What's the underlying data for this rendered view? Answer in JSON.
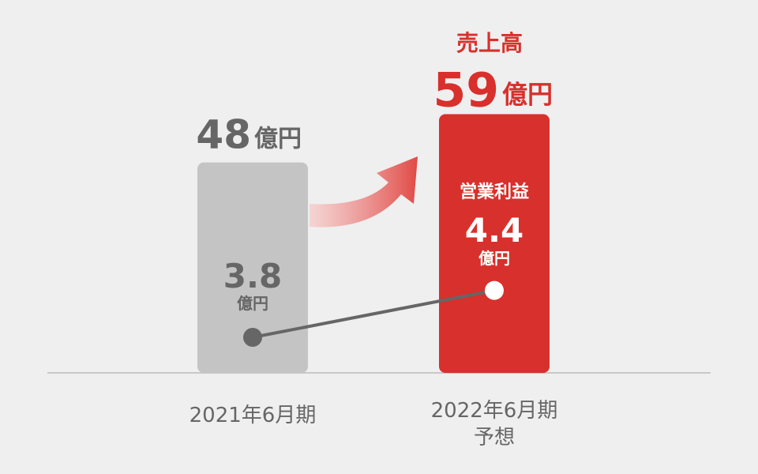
{
  "chart_data": {
    "type": "bar",
    "categories": [
      "2021年6月期",
      "2022年6月期\n予想"
    ],
    "series": [
      {
        "name": "売上高",
        "unit": "億円",
        "values": [
          48,
          59
        ],
        "colors": [
          "#c4c4c4",
          "#d8302c"
        ],
        "labels": [
          "48",
          "59"
        ]
      },
      {
        "name": "営業利益",
        "unit": "億円",
        "type": "line",
        "values": [
          3.8,
          4.4
        ],
        "labels": [
          "3.8",
          "4.4"
        ],
        "colors": [
          "#666666",
          "#ffffff"
        ]
      }
    ],
    "text": {
      "sales_title": "売上高",
      "profit_title": "営業利益",
      "unit": "億円"
    }
  }
}
